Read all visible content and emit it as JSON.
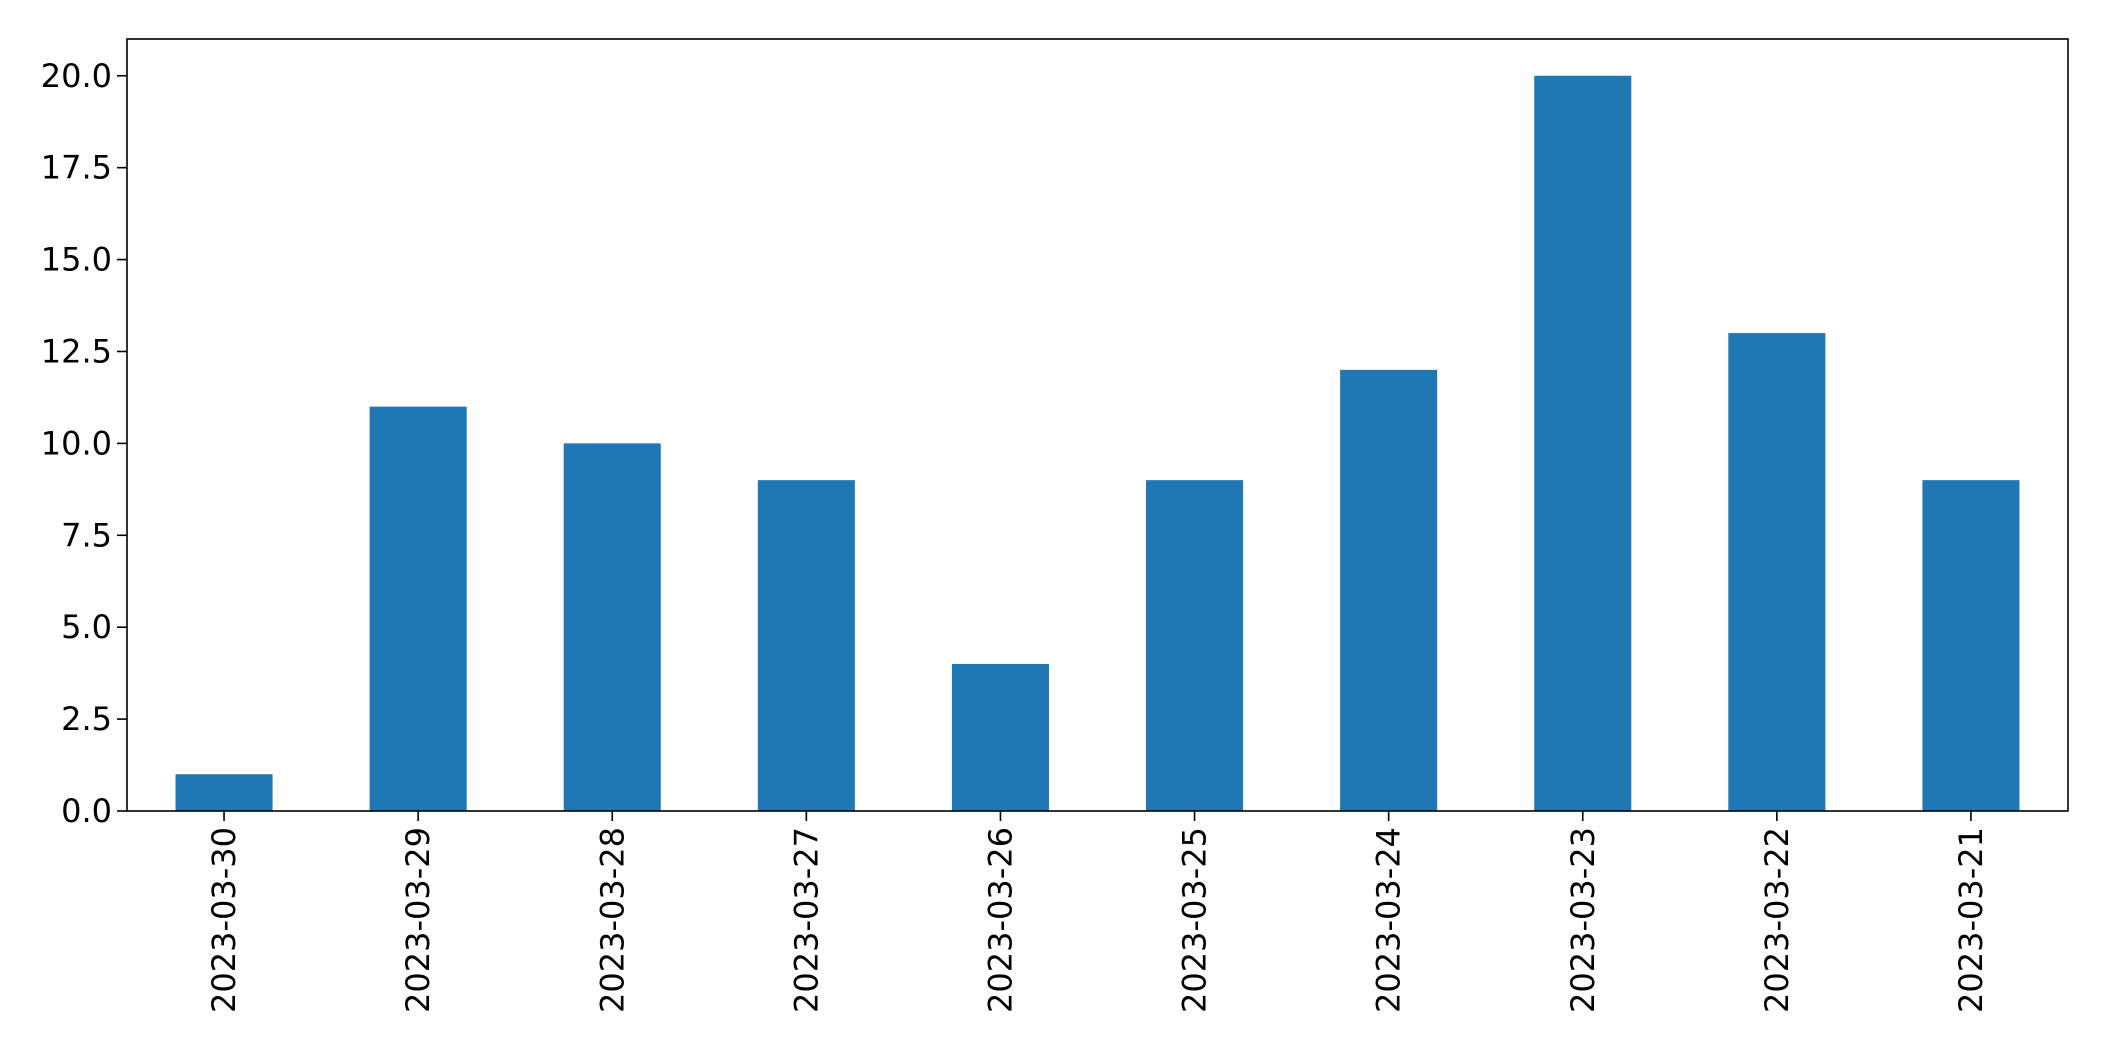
{
  "chart_data": {
    "type": "bar",
    "categories": [
      "2023-03-30",
      "2023-03-29",
      "2023-03-28",
      "2023-03-27",
      "2023-03-26",
      "2023-03-25",
      "2023-03-24",
      "2023-03-23",
      "2023-03-22",
      "2023-03-21"
    ],
    "values": [
      1,
      11,
      10,
      9,
      4,
      9,
      12,
      20,
      13,
      9
    ],
    "title": "",
    "xlabel": "",
    "ylabel": "",
    "ylim": [
      0,
      21
    ],
    "yticks": [
      "0.0",
      "2.5",
      "5.0",
      "7.5",
      "10.0",
      "12.5",
      "15.0",
      "17.5",
      "20.0"
    ],
    "grid": false,
    "legend": "none",
    "bar_color": "#1f77b4"
  }
}
